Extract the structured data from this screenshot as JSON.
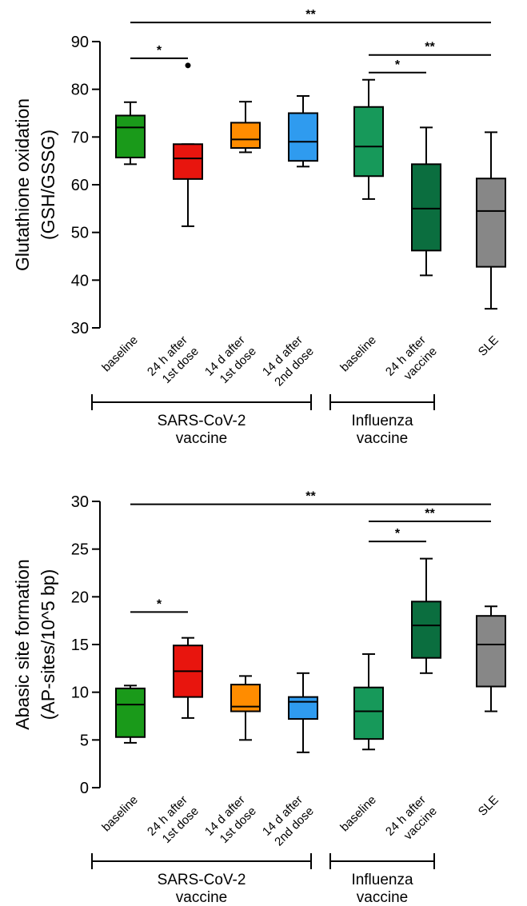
{
  "chart_data": [
    {
      "type": "boxplot",
      "ylabel_line1": "Glutathione oxidation",
      "ylabel_line2": "(GSH/GSSG)",
      "ylim": [
        30,
        90
      ],
      "yticks": [
        30,
        40,
        50,
        60,
        70,
        80,
        90
      ],
      "groups": [
        {
          "label": "SARS-CoV-2",
          "label2": "vaccine",
          "first": 0,
          "last": 3
        },
        {
          "label": "Influenza",
          "label2": "vaccine",
          "first": 4,
          "last": 5
        }
      ],
      "boxes": [
        {
          "line1": "baseline",
          "line2": "",
          "color": "#1a9a1a",
          "min": 64.3,
          "q1": 65.7,
          "median": 72.0,
          "q3": 74.5,
          "max": 77.3,
          "outliers": []
        },
        {
          "line1": "24 h after",
          "line2": "1st dose",
          "color": "#e8150e",
          "min": 51.3,
          "q1": 61.2,
          "median": 65.5,
          "q3": 68.5,
          "max": 68.5,
          "outliers": [
            85.0
          ]
        },
        {
          "line1": "14 d after",
          "line2": "1st dose",
          "color": "#ff8c00",
          "min": 66.8,
          "q1": 67.7,
          "median": 69.5,
          "q3": 73.0,
          "max": 77.4,
          "outliers": []
        },
        {
          "line1": "14 d after",
          "line2": "2nd dose",
          "color": "#2f9bef",
          "min": 63.8,
          "q1": 65.0,
          "median": 69.0,
          "q3": 75.0,
          "max": 78.6,
          "outliers": []
        },
        {
          "line1": "baseline",
          "line2": "",
          "color": "#17995a",
          "min": 57.0,
          "q1": 61.8,
          "median": 68.0,
          "q3": 76.3,
          "max": 82.0,
          "outliers": []
        },
        {
          "line1": "24 h after",
          "line2": "vaccine",
          "color": "#0b6e3f",
          "min": 41.0,
          "q1": 46.2,
          "median": 55.0,
          "q3": 64.3,
          "max": 72.0,
          "outliers": []
        },
        {
          "line1": "SLE",
          "line2": "",
          "color": "#878787",
          "min": 34.0,
          "q1": 42.8,
          "median": 54.5,
          "q3": 61.3,
          "max": 71.0,
          "outliers": []
        }
      ],
      "brackets": [
        {
          "from": 0,
          "to": 6,
          "label": "**",
          "level": 94.0
        },
        {
          "from": 4,
          "to": 6,
          "label": "**",
          "level": 87.2
        },
        {
          "from": 0,
          "to": 1,
          "label": "*",
          "level": 86.5
        },
        {
          "from": 4,
          "to": 5,
          "label": "*",
          "level": 83.5
        }
      ]
    },
    {
      "type": "boxplot",
      "ylabel_line1": "Abasic site formation",
      "ylabel_line2": "(AP-sites/10^5 bp)",
      "ylim": [
        0,
        30
      ],
      "yticks": [
        0,
        5,
        10,
        15,
        20,
        25,
        30
      ],
      "groups": [
        {
          "label": "SARS-CoV-2",
          "label2": "vaccine",
          "first": 0,
          "last": 3
        },
        {
          "label": "Influenza",
          "label2": "vaccine",
          "first": 4,
          "last": 5
        }
      ],
      "boxes": [
        {
          "line1": "baseline",
          "line2": "",
          "color": "#1a9a1a",
          "min": 4.7,
          "q1": 5.3,
          "median": 8.7,
          "q3": 10.4,
          "max": 10.7,
          "outliers": []
        },
        {
          "line1": "24 h after",
          "line2": "1st dose",
          "color": "#e8150e",
          "min": 7.3,
          "q1": 9.5,
          "median": 12.2,
          "q3": 14.9,
          "max": 15.7,
          "outliers": []
        },
        {
          "line1": "14 d after",
          "line2": "1st dose",
          "color": "#ff8c00",
          "min": 5.0,
          "q1": 8.0,
          "median": 8.5,
          "q3": 10.8,
          "max": 11.7,
          "outliers": []
        },
        {
          "line1": "14 d after",
          "line2": "2nd dose",
          "color": "#2f9bef",
          "min": 3.7,
          "q1": 7.2,
          "median": 9.0,
          "q3": 9.5,
          "max": 12.0,
          "outliers": []
        },
        {
          "line1": "baseline",
          "line2": "",
          "color": "#17995a",
          "min": 4.0,
          "q1": 5.1,
          "median": 8.0,
          "q3": 10.5,
          "max": 14.0,
          "outliers": []
        },
        {
          "line1": "24 h after",
          "line2": "vaccine",
          "color": "#0b6e3f",
          "min": 12.0,
          "q1": 13.6,
          "median": 17.0,
          "q3": 19.5,
          "max": 24.0,
          "outliers": []
        },
        {
          "line1": "SLE",
          "line2": "",
          "color": "#878787",
          "min": 8.0,
          "q1": 10.6,
          "median": 15.0,
          "q3": 18.0,
          "max": 19.0,
          "outliers": []
        }
      ],
      "brackets": [
        {
          "from": 0,
          "to": 6,
          "label": "**",
          "level": 29.7
        },
        {
          "from": 4,
          "to": 6,
          "label": "**",
          "level": 27.9
        },
        {
          "from": 4,
          "to": 5,
          "label": "*",
          "level": 25.8
        },
        {
          "from": 0,
          "to": 1,
          "label": "*",
          "level": 18.4
        }
      ]
    }
  ]
}
